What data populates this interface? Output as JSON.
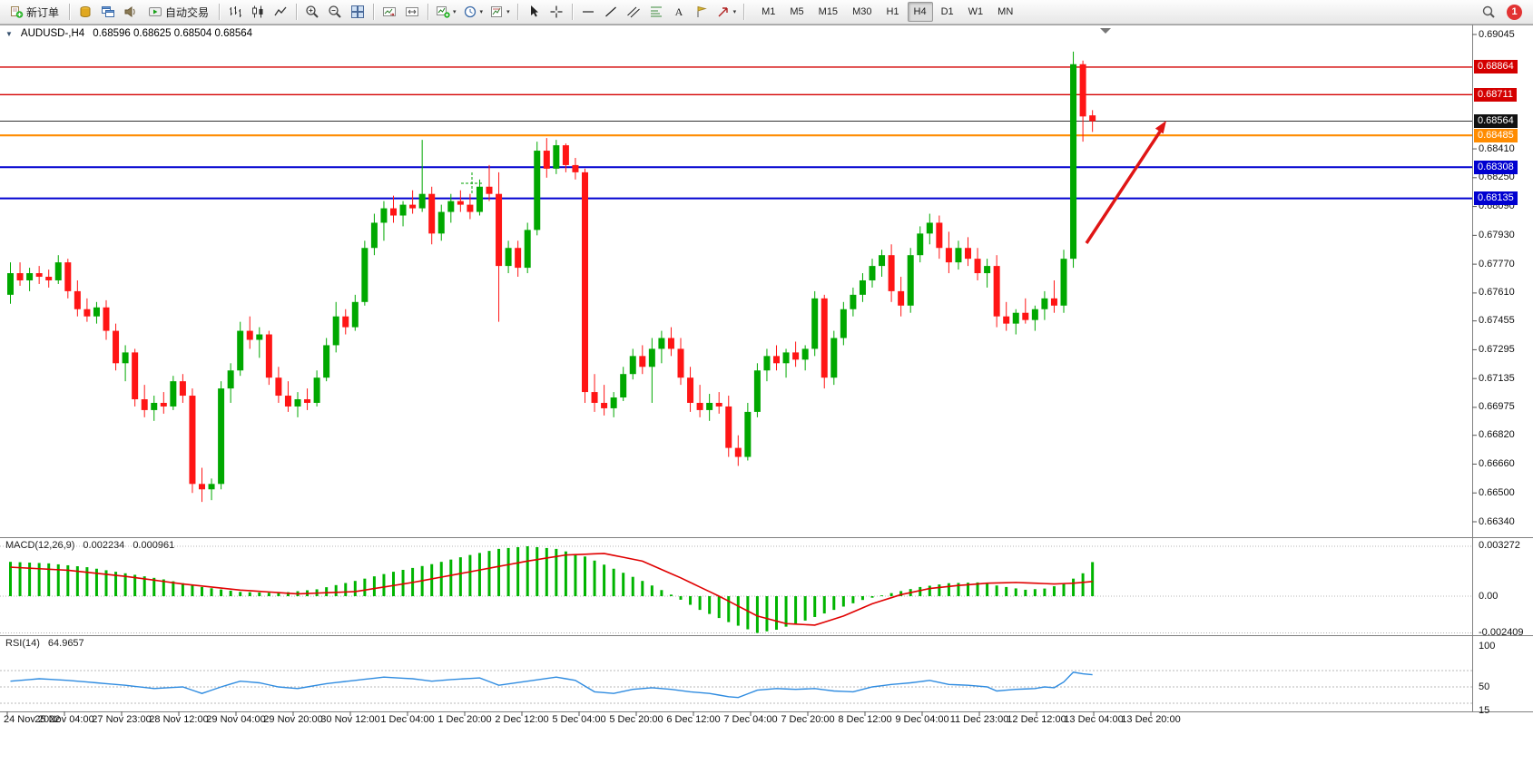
{
  "window": {
    "symbol_period": "AUDUSD-,H4",
    "ohlc": "0.68596 0.68625 0.68504 0.68564"
  },
  "toolbar": {
    "new_order_label": "新订单",
    "autotrading_label": "自动交易",
    "timeframes": [
      "M1",
      "M5",
      "M15",
      "M30",
      "H1",
      "H4",
      "D1",
      "W1",
      "MN"
    ],
    "active_timeframe": "H4",
    "notification_count": "1",
    "icons": [
      "new-order-icon",
      "profiles-icon",
      "chart-windows-icon",
      "sound-icon",
      "autotrading-icon",
      "bar-chart-icon",
      "candlestick-chart-icon",
      "line-chart-icon",
      "zoom-in-icon",
      "zoom-out-icon",
      "tile-windows-icon",
      "auto-scroll-icon",
      "chart-shift-icon",
      "indicators-icon",
      "periods-icon",
      "templates-icon",
      "cursor-icon",
      "crosshair-icon",
      "horizontal-line-icon",
      "trendline-icon",
      "channel-icon",
      "fibonacci-icon",
      "text-icon",
      "label-icon",
      "arrows-icon",
      "search-icon",
      "notification-icon"
    ]
  },
  "price_scale": {
    "ticks": [
      {
        "label": "0.69045",
        "price": 0.69045
      },
      {
        "label": "0.68410",
        "price": 0.6841
      },
      {
        "label": "0.68250",
        "price": 0.6825
      },
      {
        "label": "0.68090",
        "price": 0.6809
      },
      {
        "label": "0.67930",
        "price": 0.6793
      },
      {
        "label": "0.67770",
        "price": 0.6777
      },
      {
        "label": "0.67610",
        "price": 0.6761
      },
      {
        "label": "0.67455",
        "price": 0.67455
      },
      {
        "label": "0.67295",
        "price": 0.67295
      },
      {
        "label": "0.67135",
        "price": 0.67135
      },
      {
        "label": "0.66975",
        "price": 0.66975
      },
      {
        "label": "0.66820",
        "price": 0.6682
      },
      {
        "label": "0.66660",
        "price": 0.6666
      },
      {
        "label": "0.66500",
        "price": 0.665
      },
      {
        "label": "0.66340",
        "price": 0.6634
      }
    ],
    "badges": [
      {
        "label": "0.68864",
        "price": 0.68864,
        "color": "#d40000"
      },
      {
        "label": "0.68711",
        "price": 0.68711,
        "color": "#d40000"
      },
      {
        "label": "0.68564",
        "price": 0.68564,
        "color": "#111111"
      },
      {
        "label": "0.68485",
        "price": 0.68485,
        "color": "#ff8c00"
      },
      {
        "label": "0.68308",
        "price": 0.68308,
        "color": "#0000d0"
      },
      {
        "label": "0.68135",
        "price": 0.68135,
        "color": "#0000d0"
      }
    ]
  },
  "hlines": [
    {
      "price": 0.68864,
      "color": "#d40000",
      "width": 1.4
    },
    {
      "price": 0.68711,
      "color": "#d40000",
      "width": 1.4
    },
    {
      "price": 0.68564,
      "color": "#333333",
      "width": 1
    },
    {
      "price": 0.68485,
      "color": "#ff8c00",
      "width": 2.2
    },
    {
      "price": 0.68308,
      "color": "#0000d0",
      "width": 2
    },
    {
      "price": 0.68135,
      "color": "#0000d0",
      "width": 2
    }
  ],
  "annotation": {
    "arrow_color": "#e01515"
  },
  "chart_data": {
    "type": "candlestick",
    "symbol": "AUDUSD",
    "timeframe": "H4",
    "title": "AUDUSD-,H4 0.68596 0.68625 0.68504 0.68564",
    "price_range": [
      0.6634,
      0.69045
    ],
    "up_color": "#00a800",
    "down_color": "#ff1515",
    "candles": [
      [
        0.676,
        0.6778,
        0.6755,
        0.6772
      ],
      [
        0.6772,
        0.6778,
        0.6765,
        0.6768
      ],
      [
        0.6768,
        0.6775,
        0.6762,
        0.6772
      ],
      [
        0.6772,
        0.6776,
        0.6766,
        0.677
      ],
      [
        0.677,
        0.6774,
        0.6764,
        0.6768
      ],
      [
        0.6768,
        0.6782,
        0.6766,
        0.6778
      ],
      [
        0.6778,
        0.678,
        0.6758,
        0.6762
      ],
      [
        0.6762,
        0.6768,
        0.6748,
        0.6752
      ],
      [
        0.6752,
        0.6758,
        0.6745,
        0.6748
      ],
      [
        0.6748,
        0.6756,
        0.6744,
        0.6753
      ],
      [
        0.6753,
        0.6757,
        0.6735,
        0.674
      ],
      [
        0.674,
        0.6744,
        0.6718,
        0.6722
      ],
      [
        0.6722,
        0.6732,
        0.6712,
        0.6728
      ],
      [
        0.6728,
        0.673,
        0.6698,
        0.6702
      ],
      [
        0.6702,
        0.671,
        0.6692,
        0.6696
      ],
      [
        0.6696,
        0.6704,
        0.669,
        0.67
      ],
      [
        0.67,
        0.6706,
        0.6694,
        0.6698
      ],
      [
        0.6698,
        0.6715,
        0.6696,
        0.6712
      ],
      [
        0.6712,
        0.6716,
        0.67,
        0.6704
      ],
      [
        0.6704,
        0.6708,
        0.665,
        0.6655
      ],
      [
        0.6655,
        0.6664,
        0.6645,
        0.6652
      ],
      [
        0.6652,
        0.6658,
        0.6646,
        0.6655
      ],
      [
        0.6655,
        0.6712,
        0.6652,
        0.6708
      ],
      [
        0.6708,
        0.6722,
        0.67,
        0.6718
      ],
      [
        0.6718,
        0.6745,
        0.6715,
        0.674
      ],
      [
        0.674,
        0.6748,
        0.673,
        0.6735
      ],
      [
        0.6735,
        0.6742,
        0.6725,
        0.6738
      ],
      [
        0.6738,
        0.674,
        0.671,
        0.6714
      ],
      [
        0.6714,
        0.672,
        0.67,
        0.6704
      ],
      [
        0.6704,
        0.6712,
        0.6695,
        0.6698
      ],
      [
        0.6698,
        0.6706,
        0.6692,
        0.6702
      ],
      [
        0.6702,
        0.6708,
        0.6696,
        0.67
      ],
      [
        0.67,
        0.6718,
        0.6698,
        0.6714
      ],
      [
        0.6714,
        0.6736,
        0.6712,
        0.6732
      ],
      [
        0.6732,
        0.6756,
        0.6728,
        0.6748
      ],
      [
        0.6748,
        0.6752,
        0.6738,
        0.6742
      ],
      [
        0.6742,
        0.676,
        0.674,
        0.6756
      ],
      [
        0.6756,
        0.679,
        0.6754,
        0.6786
      ],
      [
        0.6786,
        0.6805,
        0.6782,
        0.68
      ],
      [
        0.68,
        0.6812,
        0.679,
        0.6808
      ],
      [
        0.6808,
        0.6815,
        0.68,
        0.6804
      ],
      [
        0.6804,
        0.6812,
        0.6798,
        0.681
      ],
      [
        0.681,
        0.6818,
        0.6805,
        0.6808
      ],
      [
        0.6808,
        0.6846,
        0.6806,
        0.6816
      ],
      [
        0.6816,
        0.682,
        0.6788,
        0.6794
      ],
      [
        0.6794,
        0.681,
        0.679,
        0.6806
      ],
      [
        0.6806,
        0.6816,
        0.68,
        0.6812
      ],
      [
        0.6812,
        0.6818,
        0.6806,
        0.681
      ],
      [
        0.681,
        0.6816,
        0.6802,
        0.6806
      ],
      [
        0.6806,
        0.6824,
        0.6804,
        0.682
      ],
      [
        0.682,
        0.6832,
        0.6812,
        0.6816
      ],
      [
        0.6816,
        0.6828,
        0.6745,
        0.6776
      ],
      [
        0.6776,
        0.679,
        0.6772,
        0.6786
      ],
      [
        0.6786,
        0.679,
        0.677,
        0.6775
      ],
      [
        0.6775,
        0.68,
        0.6772,
        0.6796
      ],
      [
        0.6796,
        0.6845,
        0.6793,
        0.684
      ],
      [
        0.684,
        0.6847,
        0.6825,
        0.683
      ],
      [
        0.683,
        0.6846,
        0.6827,
        0.6843
      ],
      [
        0.6843,
        0.6844,
        0.6828,
        0.6832
      ],
      [
        0.6832,
        0.6836,
        0.6824,
        0.6828
      ],
      [
        0.6828,
        0.683,
        0.67,
        0.6706
      ],
      [
        0.6706,
        0.6716,
        0.6695,
        0.67
      ],
      [
        0.67,
        0.671,
        0.6693,
        0.6697
      ],
      [
        0.6697,
        0.6706,
        0.6692,
        0.6703
      ],
      [
        0.6703,
        0.672,
        0.6701,
        0.6716
      ],
      [
        0.6716,
        0.673,
        0.6713,
        0.6726
      ],
      [
        0.6726,
        0.6732,
        0.6716,
        0.672
      ],
      [
        0.672,
        0.6736,
        0.67,
        0.673
      ],
      [
        0.673,
        0.674,
        0.6722,
        0.6736
      ],
      [
        0.6736,
        0.6742,
        0.6726,
        0.673
      ],
      [
        0.673,
        0.6736,
        0.671,
        0.6714
      ],
      [
        0.6714,
        0.672,
        0.6695,
        0.67
      ],
      [
        0.67,
        0.671,
        0.6692,
        0.6696
      ],
      [
        0.6696,
        0.6705,
        0.669,
        0.67
      ],
      [
        0.67,
        0.6706,
        0.6694,
        0.6698
      ],
      [
        0.6698,
        0.6704,
        0.667,
        0.6675
      ],
      [
        0.6675,
        0.6682,
        0.6665,
        0.667
      ],
      [
        0.667,
        0.67,
        0.6668,
        0.6695
      ],
      [
        0.6695,
        0.6722,
        0.6692,
        0.6718
      ],
      [
        0.6718,
        0.673,
        0.6712,
        0.6726
      ],
      [
        0.6726,
        0.6732,
        0.6718,
        0.6722
      ],
      [
        0.6722,
        0.673,
        0.6714,
        0.6728
      ],
      [
        0.6728,
        0.6734,
        0.672,
        0.6724
      ],
      [
        0.6724,
        0.6732,
        0.6718,
        0.673
      ],
      [
        0.673,
        0.6762,
        0.6726,
        0.6758
      ],
      [
        0.6758,
        0.676,
        0.6708,
        0.6714
      ],
      [
        0.6714,
        0.674,
        0.671,
        0.6736
      ],
      [
        0.6736,
        0.6756,
        0.6732,
        0.6752
      ],
      [
        0.6752,
        0.6764,
        0.6748,
        0.676
      ],
      [
        0.676,
        0.6772,
        0.6756,
        0.6768
      ],
      [
        0.6768,
        0.678,
        0.6764,
        0.6776
      ],
      [
        0.6776,
        0.6785,
        0.677,
        0.6782
      ],
      [
        0.6782,
        0.6788,
        0.6756,
        0.6762
      ],
      [
        0.6762,
        0.677,
        0.6748,
        0.6754
      ],
      [
        0.6754,
        0.6786,
        0.675,
        0.6782
      ],
      [
        0.6782,
        0.6798,
        0.6778,
        0.6794
      ],
      [
        0.6794,
        0.6805,
        0.6788,
        0.68
      ],
      [
        0.68,
        0.6804,
        0.678,
        0.6786
      ],
      [
        0.6786,
        0.6795,
        0.6772,
        0.6778
      ],
      [
        0.6778,
        0.679,
        0.6774,
        0.6786
      ],
      [
        0.6786,
        0.6792,
        0.6776,
        0.678
      ],
      [
        0.678,
        0.6786,
        0.6768,
        0.6772
      ],
      [
        0.6772,
        0.678,
        0.6764,
        0.6776
      ],
      [
        0.6776,
        0.6782,
        0.6742,
        0.6748
      ],
      [
        0.6748,
        0.6756,
        0.674,
        0.6744
      ],
      [
        0.6744,
        0.6752,
        0.6738,
        0.675
      ],
      [
        0.675,
        0.6758,
        0.6744,
        0.6746
      ],
      [
        0.6746,
        0.6754,
        0.674,
        0.6752
      ],
      [
        0.6752,
        0.6762,
        0.6746,
        0.6758
      ],
      [
        0.6758,
        0.6768,
        0.675,
        0.6754
      ],
      [
        0.6754,
        0.6785,
        0.675,
        0.678
      ],
      [
        0.678,
        0.6895,
        0.6775,
        0.6888
      ],
      [
        0.6888,
        0.689,
        0.6845,
        0.6859
      ],
      [
        0.68596,
        0.68625,
        0.68504,
        0.68564
      ]
    ]
  },
  "macd": {
    "name": "MACD(12,26,9)",
    "value1": "0.002234",
    "value2": "0.000961",
    "histogram_color": "#00b400",
    "signal_color": "#e00000",
    "scale": [
      {
        "label": "0.003272",
        "value": 0.003272
      },
      {
        "label": "0.00",
        "value": 0
      },
      {
        "label": "-0.002409",
        "value": -0.002409
      }
    ],
    "histogram_keypoints": [
      [
        0,
        0.00225
      ],
      [
        4,
        0.00215
      ],
      [
        8,
        0.0019
      ],
      [
        12,
        0.0015
      ],
      [
        16,
        0.0011
      ],
      [
        20,
        0.0006
      ],
      [
        24,
        0.00028
      ],
      [
        28,
        0.0002
      ],
      [
        32,
        0.00045
      ],
      [
        36,
        0.001
      ],
      [
        40,
        0.0016
      ],
      [
        44,
        0.0021
      ],
      [
        48,
        0.0027
      ],
      [
        51,
        0.0031
      ],
      [
        54,
        0.003272
      ],
      [
        57,
        0.0031
      ],
      [
        60,
        0.0026
      ],
      [
        63,
        0.0018
      ],
      [
        66,
        0.001
      ],
      [
        69,
        0.0001
      ],
      [
        72,
        -0.0009
      ],
      [
        75,
        -0.0017
      ],
      [
        78,
        -0.002409
      ],
      [
        80,
        -0.0022
      ],
      [
        83,
        -0.0016
      ],
      [
        86,
        -0.0009
      ],
      [
        89,
        -0.00025
      ],
      [
        92,
        0.0002
      ],
      [
        95,
        0.0006
      ],
      [
        98,
        0.00085
      ],
      [
        101,
        0.0009
      ],
      [
        104,
        0.0006
      ],
      [
        106,
        0.00042
      ],
      [
        108,
        0.0005
      ],
      [
        110,
        0.0008
      ],
      [
        112,
        0.0015
      ],
      [
        113,
        0.002234
      ]
    ],
    "signal_keypoints": [
      [
        0,
        0.0019
      ],
      [
        6,
        0.0017
      ],
      [
        12,
        0.0013
      ],
      [
        18,
        0.0008
      ],
      [
        24,
        0.0004
      ],
      [
        30,
        0.00015
      ],
      [
        36,
        0.0003
      ],
      [
        42,
        0.0009
      ],
      [
        48,
        0.0016
      ],
      [
        54,
        0.0023
      ],
      [
        58,
        0.0027
      ],
      [
        62,
        0.0028
      ],
      [
        66,
        0.0023
      ],
      [
        70,
        0.0012
      ],
      [
        74,
        0.0
      ],
      [
        78,
        -0.0013
      ],
      [
        81,
        -0.0018
      ],
      [
        84,
        -0.0019
      ],
      [
        87,
        -0.0013
      ],
      [
        90,
        -0.0005
      ],
      [
        93,
        0.0001
      ],
      [
        96,
        0.0005
      ],
      [
        99,
        0.0007
      ],
      [
        102,
        0.00085
      ],
      [
        105,
        0.0009
      ],
      [
        107,
        0.00085
      ],
      [
        109,
        0.0008
      ],
      [
        111,
        0.00085
      ],
      [
        113,
        0.000961
      ]
    ]
  },
  "rsi": {
    "name": "RSI(14)",
    "value": "64.9657",
    "line_color": "#2E8BE0",
    "scale": [
      {
        "label": "100",
        "value": 100
      },
      {
        "label": "50",
        "value": 50
      },
      {
        "label": "15",
        "value": 15
      }
    ],
    "levels": [
      70,
      50,
      30
    ],
    "line_keypoints": [
      [
        0,
        57
      ],
      [
        3,
        60
      ],
      [
        6,
        58
      ],
      [
        9,
        55
      ],
      [
        12,
        52
      ],
      [
        15,
        48
      ],
      [
        18,
        50
      ],
      [
        20,
        42
      ],
      [
        22,
        50
      ],
      [
        24,
        57
      ],
      [
        26,
        55
      ],
      [
        28,
        50
      ],
      [
        30,
        48
      ],
      [
        33,
        54
      ],
      [
        36,
        58
      ],
      [
        39,
        62
      ],
      [
        42,
        60
      ],
      [
        44,
        57
      ],
      [
        46,
        59
      ],
      [
        49,
        61
      ],
      [
        51,
        52
      ],
      [
        54,
        57
      ],
      [
        57,
        62
      ],
      [
        59,
        58
      ],
      [
        61,
        44
      ],
      [
        63,
        42
      ],
      [
        65,
        47
      ],
      [
        67,
        49
      ],
      [
        69,
        47
      ],
      [
        71,
        44
      ],
      [
        73,
        42
      ],
      [
        75,
        38
      ],
      [
        76,
        37
      ],
      [
        78,
        46
      ],
      [
        80,
        48
      ],
      [
        82,
        47
      ],
      [
        84,
        48
      ],
      [
        86,
        45
      ],
      [
        88,
        44
      ],
      [
        90,
        50
      ],
      [
        92,
        53
      ],
      [
        94,
        55
      ],
      [
        96,
        58
      ],
      [
        98,
        53
      ],
      [
        100,
        52
      ],
      [
        102,
        50
      ],
      [
        103,
        45
      ],
      [
        105,
        47
      ],
      [
        107,
        48
      ],
      [
        108,
        50
      ],
      [
        109,
        49
      ],
      [
        110,
        56
      ],
      [
        111,
        68
      ],
      [
        112,
        66
      ],
      [
        113,
        64.97
      ]
    ]
  },
  "time_axis": [
    "24 Nov 2022",
    "25 Nov 04:00",
    "27 Nov 23:00",
    "28 Nov 12:00",
    "29 Nov 04:00",
    "29 Nov 20:00",
    "30 Nov 12:00",
    "1 Dec 04:00",
    "1 Dec 20:00",
    "2 Dec 12:00",
    "5 Dec 04:00",
    "5 Dec 20:00",
    "6 Dec 12:00",
    "7 Dec 04:00",
    "7 Dec 20:00",
    "8 Dec 12:00",
    "9 Dec 04:00",
    "11 Dec 23:00",
    "12 Dec 12:00",
    "13 Dec 04:00",
    "13 Dec 20:00"
  ]
}
